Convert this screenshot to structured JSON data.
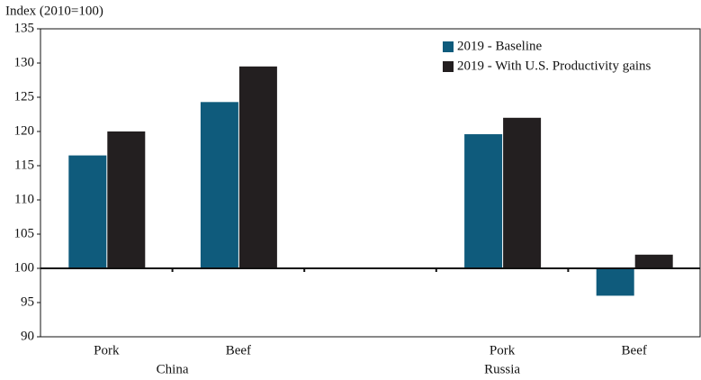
{
  "chart_data": {
    "type": "bar",
    "y_axis_label": "Index (2010=100)",
    "categories": [
      "Pork",
      "Beef",
      null,
      "Pork",
      "Beef"
    ],
    "group_labels": [
      "China",
      "Russia"
    ],
    "series": [
      {
        "name": "2019 - Baseline",
        "color": "#0f5b7c",
        "values": [
          116.5,
          124.3,
          null,
          119.6,
          96
        ]
      },
      {
        "name": "2019 - With U.S. Productivity gains",
        "color": "#231f20",
        "values": [
          120,
          129.5,
          null,
          122,
          102
        ]
      }
    ],
    "baseline": 100,
    "ylim": [
      90,
      135
    ],
    "yticks": [
      90,
      95,
      100,
      105,
      110,
      115,
      120,
      125,
      130,
      135
    ],
    "legend": "upper right"
  }
}
